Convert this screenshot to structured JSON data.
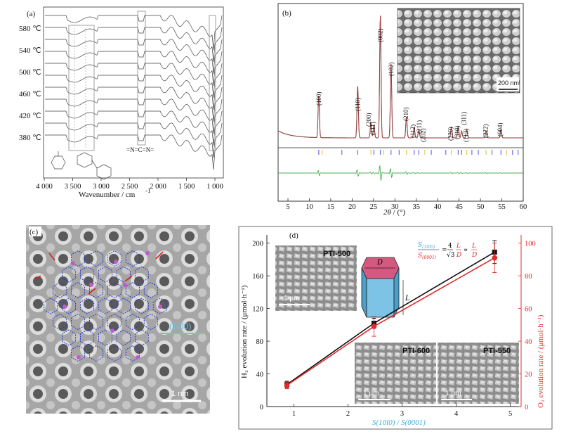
{
  "panel_a": {
    "label": "(a)",
    "temperatures": [
      "580 ℃",
      "540 ℃",
      "500 ℃",
      "460 ℃",
      "420 ℃",
      "380 ℃"
    ],
    "ncn_label": "=N=C=N=",
    "xlabel": "Wavenumber / cm",
    "xlabel_sup": "-1",
    "xticks": [
      "4 000",
      "3 500",
      "3 000",
      "2 500",
      "2 000",
      "1 500",
      "1 000"
    ]
  },
  "panel_b": {
    "label": "(b)",
    "scale_bar": "200 nm",
    "xlabel_italic": "2θ",
    "xlabel_rest": " / (°)",
    "xticks": [
      "5",
      "10",
      "15",
      "20",
      "25",
      "30",
      "35",
      "40",
      "45",
      "50",
      "55",
      "60"
    ],
    "peaks": [
      "(100)",
      "(110)",
      "(200)",
      "(111)",
      "(002)",
      "(102)",
      "(210)",
      "(112)",
      "(211)",
      "(202)",
      "(220)",
      "(310)",
      "(311)",
      "(113)",
      "(222)",
      "(004)"
    ]
  },
  "panel_c": {
    "label": "(c)",
    "plane": "(10ī0)",
    "scale_bar": "1 nm"
  },
  "panel_d": {
    "label": "(d)",
    "inset1": "PTI-500",
    "inset2": "PTI-600",
    "inset3": "PTI-550",
    "inset_scale": "1 μm",
    "prism_D": "D",
    "prism_L": "L",
    "ylabel_left": "H₂ evolution rate / (μmol·h⁻¹)",
    "ylabel_right": "O₂ evolution rate / (μmol·h⁻¹)",
    "xlabel": "S(10ī0) / S(0001)",
    "yticks_left": [
      "0",
      "40",
      "80",
      "120",
      "160",
      "200"
    ],
    "yticks_right": [
      "0",
      "20",
      "40",
      "60",
      "80",
      "100"
    ],
    "xticks": [
      "1",
      "2",
      "3",
      "4",
      "5"
    ]
  },
  "chart_data": {
    "type": "line",
    "title": "",
    "xlabel": "S(10ī0) / S(0001)",
    "ylabel": "H₂ evolution rate / (μmol·h⁻¹)",
    "ylabel_right": "O₂ evolution rate / (μmol·h⁻¹)",
    "xlim": [
      0.5,
      5.2
    ],
    "ylim": [
      0,
      210
    ],
    "ylim_right": [
      0,
      105
    ],
    "series": [
      {
        "color": "#111111",
        "axis": "left",
        "x": [
          0.87,
          2.48,
          4.71
        ],
        "y": [
          27,
          102,
          189
        ],
        "err": [
          4,
          6,
          14
        ]
      },
      {
        "color": "#e32b2b",
        "axis": "right",
        "x": [
          0.87,
          2.48,
          4.71
        ],
        "y": [
          13,
          49,
          91
        ],
        "err": [
          2,
          6,
          9
        ]
      }
    ]
  }
}
